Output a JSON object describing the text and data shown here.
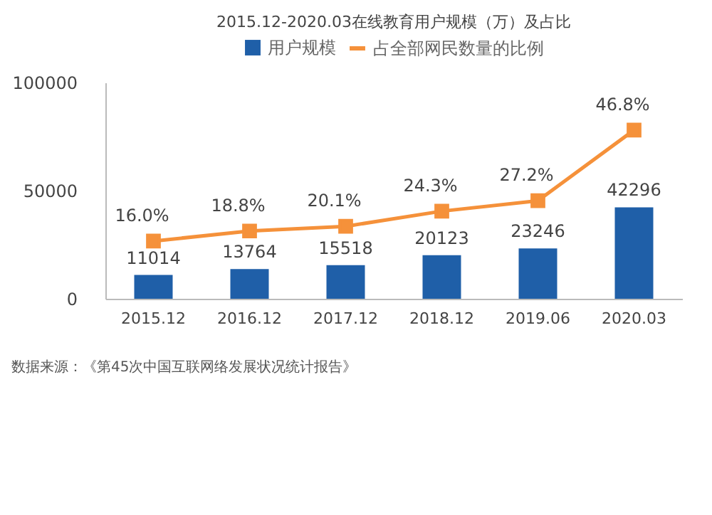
{
  "chart_data": {
    "type": "bar",
    "title": "2015.12-2020.03在线教育用户规模（万）及占比",
    "categories": [
      "2015.12",
      "2016.12",
      "2017.12",
      "2018.12",
      "2019.06",
      "2020.03"
    ],
    "series": [
      {
        "name": "用户规模",
        "color": "#1f5fa8",
        "values": [
          11014,
          13764,
          15518,
          20123,
          23246,
          42296
        ],
        "value_labels": [
          "11014",
          "13764",
          "15518",
          "20123",
          "23246",
          "42296"
        ]
      },
      {
        "name": "占全部网民数量的比例",
        "type": "line",
        "axis": "y2",
        "color": "#f5913a",
        "values": [
          16.0,
          18.8,
          20.1,
          24.3,
          27.2,
          46.8
        ],
        "value_labels": [
          "16.0%",
          "18.8%",
          "20.1%",
          "24.3%",
          "27.2%",
          "46.8%"
        ]
      }
    ],
    "ylim": [
      0,
      100000
    ],
    "yticks": [
      0,
      50000,
      100000
    ],
    "y2lim": [
      0,
      60
    ],
    "legend": "top",
    "marker": "square",
    "grid": false,
    "annotations": [
      "数据来源：《第45次中国互联网络发展状况统计报告》"
    ]
  }
}
